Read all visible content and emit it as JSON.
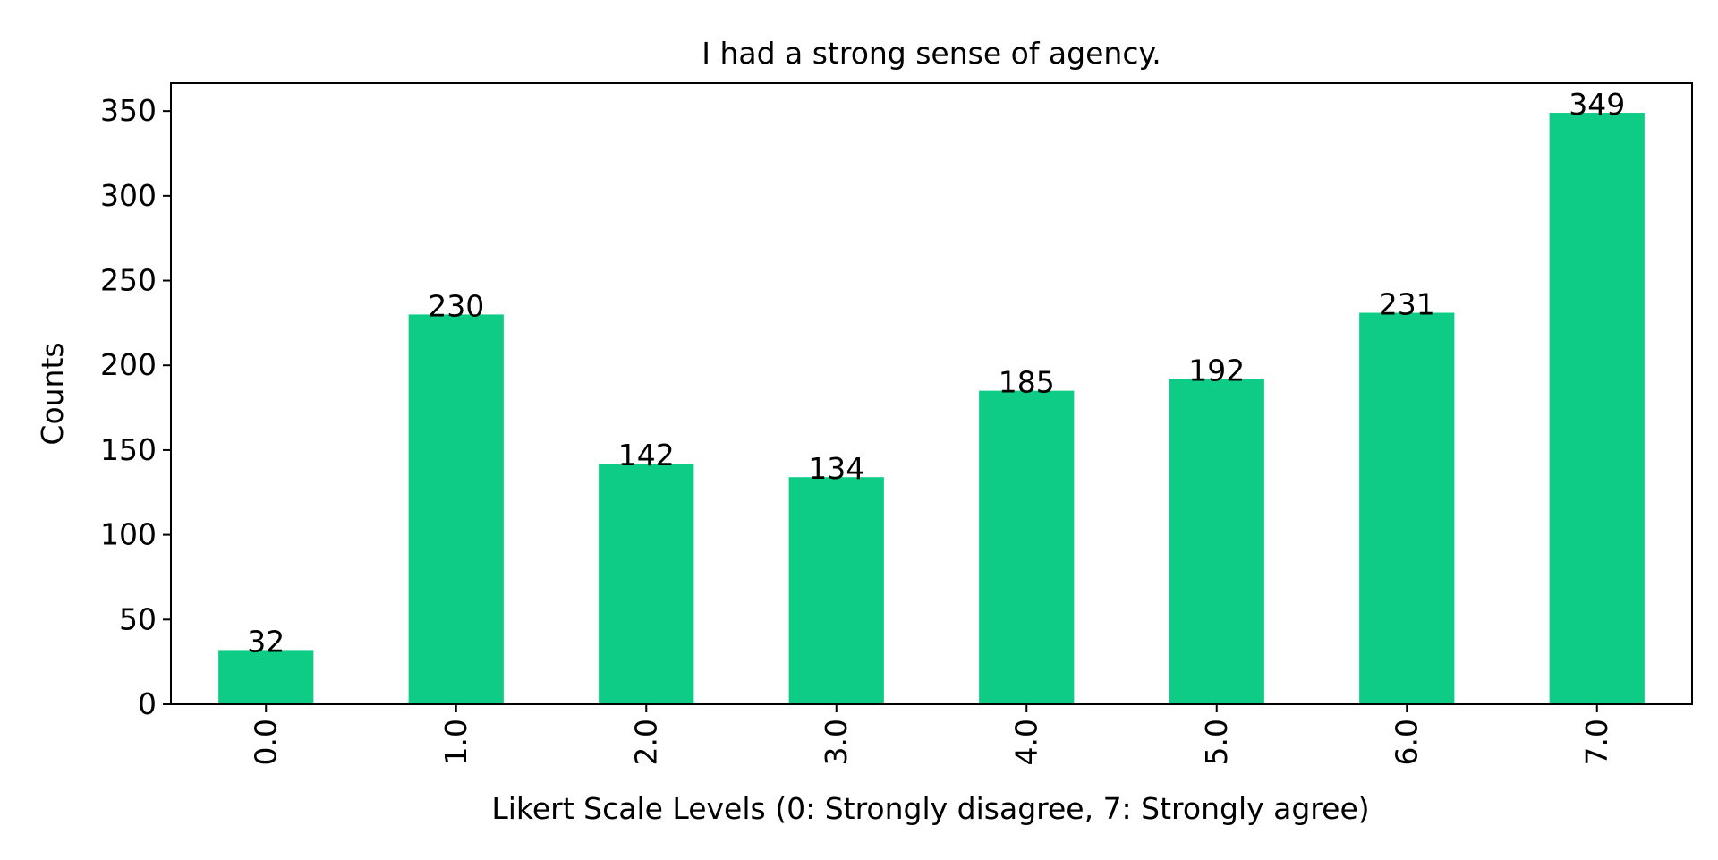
{
  "chart_data": {
    "type": "bar",
    "title": "I had a strong sense of agency.",
    "xlabel": "Likert Scale Levels (0: Strongly disagree, 7: Strongly agree)",
    "ylabel": "Counts",
    "categories": [
      "0.0",
      "1.0",
      "2.0",
      "3.0",
      "4.0",
      "5.0",
      "6.0",
      "7.0"
    ],
    "values": [
      32,
      230,
      142,
      134,
      185,
      192,
      231,
      349
    ],
    "yticks": [
      0,
      50,
      100,
      150,
      200,
      250,
      300,
      350
    ],
    "ylim": [
      0,
      366.45
    ],
    "grid": false,
    "legend": "none",
    "bar_color": "#0ecb85",
    "data_labels": true
  }
}
